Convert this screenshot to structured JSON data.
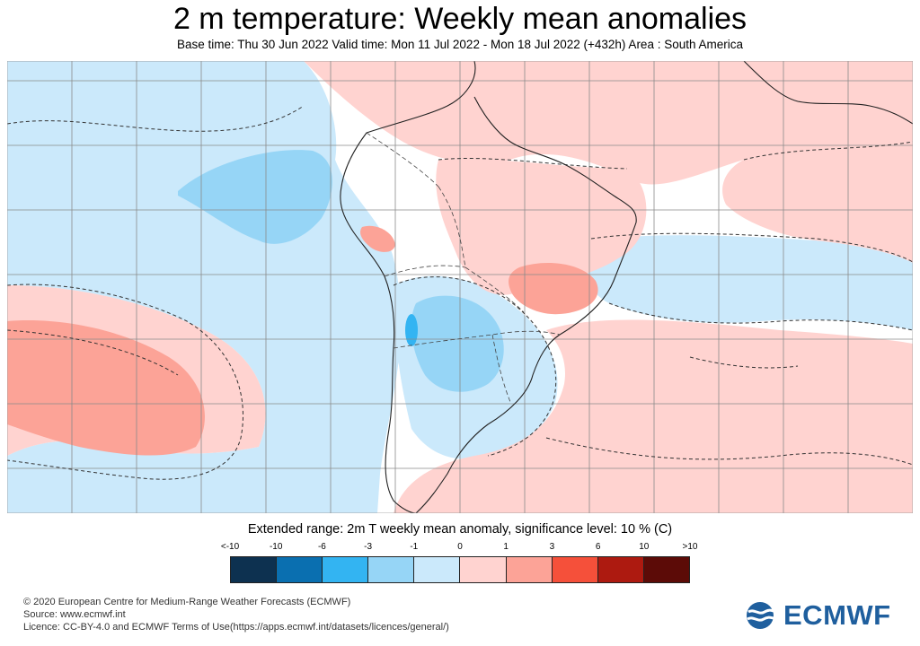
{
  "header": {
    "title": "2 m temperature: Weekly mean anomalies",
    "subtitle": "Base time: Thu 30 Jun 2022 Valid time: Mon 11 Jul 2022 - Mon 18 Jul 2022 (+432h) Area : South America"
  },
  "legend": {
    "title": "Extended range: 2m T weekly mean anomaly, significance level: 10 % (C)",
    "labels": [
      "<-10",
      "-10",
      "-6",
      "-3",
      "-1",
      "0",
      "1",
      "3",
      "6",
      "10",
      ">10"
    ],
    "colors": [
      "#0d3150",
      "#0a6fb0",
      "#33b4f2",
      "#96d5f6",
      "#cbe9fb",
      "#ffd3d0",
      "#fca397",
      "#f5503a",
      "#ad1a10",
      "#5c0b07"
    ]
  },
  "footer": {
    "copyright": "© 2020 European Centre for Medium-Range Weather Forecasts (ECMWF)",
    "source": "Source: www.ecmwf.int",
    "licence": "Licence: CC-BY-4.0 and ECMWF Terms of Use(https://apps.ecmwf.int/datasets/licences/general/)"
  },
  "logo": {
    "text": "ECMWF",
    "color": "#1f5f9e"
  }
}
